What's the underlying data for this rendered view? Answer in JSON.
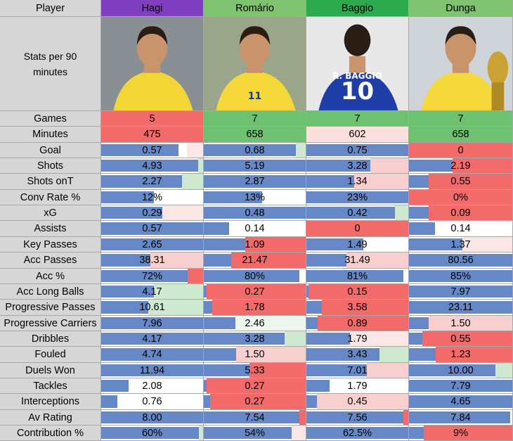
{
  "header": {
    "player_label": "Player",
    "stats_label": "Stats per 90 minutes"
  },
  "players": [
    {
      "name": "Hagi",
      "color": "#7f3fbf",
      "shirt": "#f2d636",
      "number": ""
    },
    {
      "name": "Romário",
      "color": "#7fc270",
      "shirt": "#f5d83a",
      "number": "11"
    },
    {
      "name": "Baggio",
      "color": "#2eaa4e",
      "shirt": "#1f3ea8",
      "number": "10",
      "shirt_text": "R. BAGGIO"
    },
    {
      "name": "Dunga",
      "color": "#7fc270",
      "shirt": "#f5d83a",
      "number": ""
    }
  ],
  "colors": {
    "bar": "#6688c6",
    "red": "#f26a6a",
    "green": "#6fc172",
    "light_green": "#cfe9d0",
    "pink": "#f7cfcf",
    "light_pink": "#fbe6e6"
  },
  "rows": [
    {
      "label": "Games",
      "cells": [
        {
          "text": "5",
          "bar": 0,
          "bg": "#f26a6a"
        },
        {
          "text": "7",
          "bar": 0,
          "bg": "#6fc172"
        },
        {
          "text": "7",
          "bar": 0,
          "bg": "#6fc172"
        },
        {
          "text": "7",
          "bar": 0,
          "bg": "#6fc172"
        }
      ]
    },
    {
      "label": "Minutes",
      "cells": [
        {
          "text": "475",
          "bar": 0,
          "bg": "#f26a6a"
        },
        {
          "text": "658",
          "bar": 0,
          "bg": "#6fc172"
        },
        {
          "text": "602",
          "bar": 0,
          "bg": "#fbe0e0"
        },
        {
          "text": "658",
          "bar": 0,
          "bg": "#6fc172"
        }
      ]
    },
    {
      "label": "Goal",
      "cells": [
        {
          "text": "0.57",
          "bar": 0.76,
          "bg": "#fbe6e6",
          "bgw": 0.16
        },
        {
          "text": "0.68",
          "bar": 0.9,
          "bg": "#cfe9d0",
          "bgw": 0.1
        },
        {
          "text": "0.75",
          "bar": 1.0,
          "bg": "#fff"
        },
        {
          "text": "0",
          "bar": 0,
          "bg": "#f26a6a"
        }
      ]
    },
    {
      "label": "Shots",
      "cells": [
        {
          "text": "4.93",
          "bar": 0.95,
          "bg": "#cfe9d0",
          "bgw": 0.05
        },
        {
          "text": "5.19",
          "bar": 1.0,
          "bg": "#fff"
        },
        {
          "text": "3.28",
          "bar": 0.63,
          "bg": "#f7cfcf",
          "bgw": 0.37
        },
        {
          "text": "2.19",
          "bar": 0.42,
          "bg": "#f26a6a",
          "bgw": 0.58
        }
      ]
    },
    {
      "label": "Shots onT",
      "cells": [
        {
          "text": "2.27",
          "bar": 0.79,
          "bg": "#cfe9d0",
          "bgw": 0.21
        },
        {
          "text": "2.87",
          "bar": 1.0,
          "bg": "#fff"
        },
        {
          "text": "1.34",
          "bar": 0.47,
          "bg": "#f7cfcf",
          "bgw": 0.53
        },
        {
          "text": "0.55",
          "bar": 0.19,
          "bg": "#f26a6a",
          "bgw": 0.81
        }
      ]
    },
    {
      "label": "Conv Rate %",
      "cells": [
        {
          "text": "12%",
          "bar": 0.52,
          "bg": "#fff"
        },
        {
          "text": "13%",
          "bar": 0.57,
          "bg": "#fff"
        },
        {
          "text": "23%",
          "bar": 1.0,
          "bg": "#fff"
        },
        {
          "text": "0%",
          "bar": 0,
          "bg": "#f26a6a"
        }
      ]
    },
    {
      "label": "xG",
      "cells": [
        {
          "text": "0.29",
          "bar": 0.6,
          "bg": "#fbe6e6",
          "bgw": 0.4
        },
        {
          "text": "0.48",
          "bar": 1.0,
          "bg": "#fff"
        },
        {
          "text": "0.42",
          "bar": 0.87,
          "bg": "#cfe9d0",
          "bgw": 0.13
        },
        {
          "text": "0.09",
          "bar": 0.19,
          "bg": "#f26a6a",
          "bgw": 0.81
        }
      ]
    },
    {
      "label": "Assists",
      "cells": [
        {
          "text": "0.57",
          "bar": 1.0,
          "bg": "#fff"
        },
        {
          "text": "0.14",
          "bar": 0.25,
          "bg": "#fff"
        },
        {
          "text": "0",
          "bar": 0,
          "bg": "#f26a6a"
        },
        {
          "text": "0.14",
          "bar": 0.25,
          "bg": "#fff"
        }
      ]
    },
    {
      "label": "Key Passes",
      "cells": [
        {
          "text": "2.65",
          "bar": 1.0,
          "bg": "#fff"
        },
        {
          "text": "1.09",
          "bar": 0.41,
          "bg": "#f26a6a",
          "bgw": 0.59
        },
        {
          "text": "1.49",
          "bar": 0.56,
          "bg": "#fff"
        },
        {
          "text": "1.37",
          "bar": 0.52,
          "bg": "#fbe6e6",
          "bgw": 0.48
        }
      ]
    },
    {
      "label": "Acc Passes",
      "cells": [
        {
          "text": "38.31",
          "bar": 0.48,
          "bg": "#f7cfcf",
          "bgw": 0.52
        },
        {
          "text": "21.47",
          "bar": 0.27,
          "bg": "#f26a6a",
          "bgw": 0.73
        },
        {
          "text": "31.49",
          "bar": 0.39,
          "bg": "#f7cfcf",
          "bgw": 0.61
        },
        {
          "text": "80.56",
          "bar": 1.0,
          "bg": "#fff"
        }
      ]
    },
    {
      "label": "Acc %",
      "cells": [
        {
          "text": "72%",
          "bar": 0.85,
          "bg": "#f26a6a",
          "bgw": 0.15
        },
        {
          "text": "80%",
          "bar": 0.94,
          "bg": "#fff"
        },
        {
          "text": "81%",
          "bar": 0.95,
          "bg": "#fff"
        },
        {
          "text": "85%",
          "bar": 1.0,
          "bg": "#fff"
        }
      ]
    },
    {
      "label": "Acc Long Balls",
      "cells": [
        {
          "text": "4.17",
          "bar": 0.52,
          "bg": "#cfe9d0",
          "bgw": 0.48
        },
        {
          "text": "0.27",
          "bar": 0.03,
          "bg": "#f26a6a",
          "bgw": 0.97
        },
        {
          "text": "0.15",
          "bar": 0.02,
          "bg": "#f26a6a",
          "bgw": 0.98
        },
        {
          "text": "7.97",
          "bar": 1.0,
          "bg": "#fff"
        }
      ]
    },
    {
      "label": "Progressive Passes",
      "cells": [
        {
          "text": "10.61",
          "bar": 0.46,
          "bg": "#cfe9d0",
          "bgw": 0.54
        },
        {
          "text": "1.78",
          "bar": 0.08,
          "bg": "#f26a6a",
          "bgw": 0.92
        },
        {
          "text": "3.58",
          "bar": 0.15,
          "bg": "#f26a6a",
          "bgw": 0.85
        },
        {
          "text": "23.11",
          "bar": 1.0,
          "bg": "#fff"
        }
      ]
    },
    {
      "label": "Progressive Carriers",
      "cells": [
        {
          "text": "7.96",
          "bar": 1.0,
          "bg": "#fff"
        },
        {
          "text": "2.46",
          "bar": 0.31,
          "bg": "#eef7ee",
          "bgw": 0.69
        },
        {
          "text": "0.89",
          "bar": 0.11,
          "bg": "#f26a6a",
          "bgw": 0.89
        },
        {
          "text": "1.50",
          "bar": 0.19,
          "bg": "#f7cfcf",
          "bgw": 0.81
        }
      ]
    },
    {
      "label": "Dribbles",
      "cells": [
        {
          "text": "4.17",
          "bar": 1.0,
          "bg": "#fff"
        },
        {
          "text": "3.28",
          "bar": 0.79,
          "bg": "#cfe9d0",
          "bgw": 0.21
        },
        {
          "text": "1.79",
          "bar": 0.43,
          "bg": "#fbe6e6",
          "bgw": 0.57
        },
        {
          "text": "0.55",
          "bar": 0.13,
          "bg": "#f26a6a",
          "bgw": 0.87
        }
      ]
    },
    {
      "label": "Fouled",
      "cells": [
        {
          "text": "4.74",
          "bar": 1.0,
          "bg": "#fff"
        },
        {
          "text": "1.50",
          "bar": 0.32,
          "bg": "#f7cfcf",
          "bgw": 0.68
        },
        {
          "text": "3.43",
          "bar": 0.72,
          "bg": "#cfe9d0",
          "bgw": 0.28
        },
        {
          "text": "1.23",
          "bar": 0.26,
          "bg": "#f26a6a",
          "bgw": 0.74
        }
      ]
    },
    {
      "label": "Duels Won",
      "cells": [
        {
          "text": "11.94",
          "bar": 1.0,
          "bg": "#fff"
        },
        {
          "text": "5.33",
          "bar": 0.45,
          "bg": "#f26a6a",
          "bgw": 0.55
        },
        {
          "text": "7.01",
          "bar": 0.59,
          "bg": "#f7cfcf",
          "bgw": 0.41
        },
        {
          "text": "10.00",
          "bar": 0.84,
          "bg": "#cfe9d0",
          "bgw": 0.16
        }
      ]
    },
    {
      "label": "Tackles",
      "cells": [
        {
          "text": "2.08",
          "bar": 0.27,
          "bg": "#fff"
        },
        {
          "text": "0.27",
          "bar": 0.03,
          "bg": "#f26a6a",
          "bgw": 0.97
        },
        {
          "text": "1.79",
          "bar": 0.23,
          "bg": "#fff"
        },
        {
          "text": "7.79",
          "bar": 1.0,
          "bg": "#fff"
        }
      ]
    },
    {
      "label": "Interceptions",
      "cells": [
        {
          "text": "0.76",
          "bar": 0.16,
          "bg": "#fff"
        },
        {
          "text": "0.27",
          "bar": 0.06,
          "bg": "#f26a6a",
          "bgw": 0.94
        },
        {
          "text": "0.45",
          "bar": 0.1,
          "bg": "#f7cfcf",
          "bgw": 0.9
        },
        {
          "text": "4.65",
          "bar": 1.0,
          "bg": "#fff"
        }
      ]
    },
    {
      "label": "Av Rating",
      "cells": [
        {
          "text": "8.00",
          "bar": 1.0,
          "bg": "#fff"
        },
        {
          "text": "7.54",
          "bar": 0.94,
          "bg": "#f26a6a",
          "bgw": 0.06
        },
        {
          "text": "7.56",
          "bar": 0.95,
          "bg": "#f26a6a",
          "bgw": 0.05
        },
        {
          "text": "7.84",
          "bar": 0.98,
          "bg": "#fff"
        }
      ]
    },
    {
      "label": "Contribution %",
      "cells": [
        {
          "text": "60%",
          "bar": 0.96,
          "bg": "#cfe9d0",
          "bgw": 0.04
        },
        {
          "text": "54%",
          "bar": 0.86,
          "bg": "#fbe6e6",
          "bgw": 0.14
        },
        {
          "text": "62.5%",
          "bar": 1.0,
          "bg": "#fff"
        },
        {
          "text": "9%",
          "bar": 0.14,
          "bg": "#f26a6a",
          "bgw": 0.86
        }
      ]
    }
  ]
}
